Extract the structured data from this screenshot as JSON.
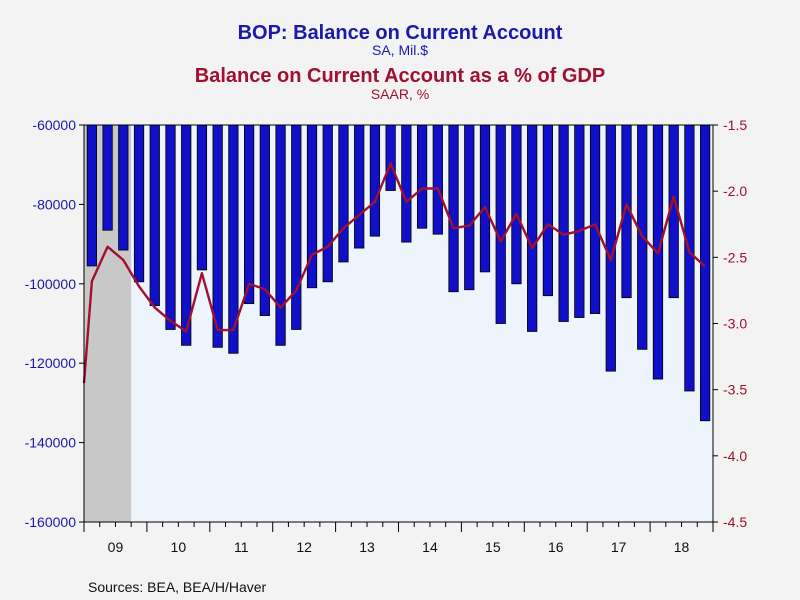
{
  "titles": {
    "main": "BOP: Balance on Current Account",
    "main_sub": "SA, Mil.$",
    "second": "Balance on Current Account as a % of GDP",
    "second_sub": "SAAR, %"
  },
  "sources": "Sources:  BEA, BEA/H/Haver",
  "colors": {
    "bar": "#1010c8",
    "line": "#a01030",
    "plot_bg": "#eef4fc",
    "recession": "#c8c8c8",
    "left_axis": "#1a1aa8",
    "right_axis": "#a01030"
  },
  "chart_data": {
    "type": "bar",
    "x_tick_labels": [
      "09",
      "10",
      "11",
      "12",
      "13",
      "14",
      "15",
      "16",
      "17",
      "18"
    ],
    "left_axis": {
      "ylim": [
        -160000,
        -60000
      ],
      "ticks": [
        "-60000",
        "-80000",
        "-100000",
        "-120000",
        "-140000",
        "-160000"
      ],
      "tick_values": [
        -60000,
        -80000,
        -100000,
        -120000,
        -140000,
        -160000
      ]
    },
    "right_axis": {
      "ylim": [
        -4.5,
        -1.5
      ],
      "ticks": [
        "-1.5",
        "-2.0",
        "-2.5",
        "-3.0",
        "-3.5",
        "-4.0",
        "-4.5"
      ],
      "tick_values": [
        -1.5,
        -2.0,
        -2.5,
        -3.0,
        -3.5,
        -4.0,
        -4.5
      ]
    },
    "recession_shade": {
      "start_quarter": 0,
      "end_quarter": 2
    },
    "quarters": [
      "2009Q1",
      "2009Q2",
      "2009Q3",
      "2009Q4",
      "2010Q1",
      "2010Q2",
      "2010Q3",
      "2010Q4",
      "2011Q1",
      "2011Q2",
      "2011Q3",
      "2011Q4",
      "2012Q1",
      "2012Q2",
      "2012Q3",
      "2012Q4",
      "2013Q1",
      "2013Q2",
      "2013Q3",
      "2013Q4",
      "2014Q1",
      "2014Q2",
      "2014Q3",
      "2014Q4",
      "2015Q1",
      "2015Q2",
      "2015Q3",
      "2015Q4",
      "2016Q1",
      "2016Q2",
      "2016Q3",
      "2016Q4",
      "2017Q1",
      "2017Q2",
      "2017Q3",
      "2017Q4",
      "2018Q1",
      "2018Q2",
      "2018Q3",
      "2018Q4"
    ],
    "series": [
      {
        "name": "BOP: Balance on Current Account",
        "axis": "left",
        "type": "bar",
        "values": [
          -95500,
          -86500,
          -91500,
          -99500,
          -105500,
          -111500,
          -115500,
          -96500,
          -116000,
          -117500,
          -105000,
          -108000,
          -115500,
          -111500,
          -101000,
          -99500,
          -94500,
          -91000,
          -88000,
          -76500,
          -89500,
          -86000,
          -87500,
          -102000,
          -101500,
          -97000,
          -110000,
          -100000,
          -112000,
          -103000,
          -109500,
          -108500,
          -107500,
          -122000,
          -103500,
          -116500,
          -124000,
          -103500,
          -127000,
          -134500
        ]
      },
      {
        "name": "Balance on Current Account as a % of GDP",
        "axis": "right",
        "type": "line",
        "start_value": -3.45,
        "values": [
          -2.68,
          -2.42,
          -2.52,
          -2.72,
          -2.88,
          -2.98,
          -3.06,
          -2.62,
          -3.05,
          -3.05,
          -2.7,
          -2.74,
          -2.88,
          -2.75,
          -2.48,
          -2.42,
          -2.28,
          -2.18,
          -2.08,
          -1.79,
          -2.08,
          -1.98,
          -1.98,
          -2.28,
          -2.26,
          -2.12,
          -2.38,
          -2.17,
          -2.43,
          -2.25,
          -2.33,
          -2.3,
          -2.25,
          -2.52,
          -2.1,
          -2.34,
          -2.47,
          -2.04,
          -2.46,
          -2.57
        ]
      }
    ]
  }
}
